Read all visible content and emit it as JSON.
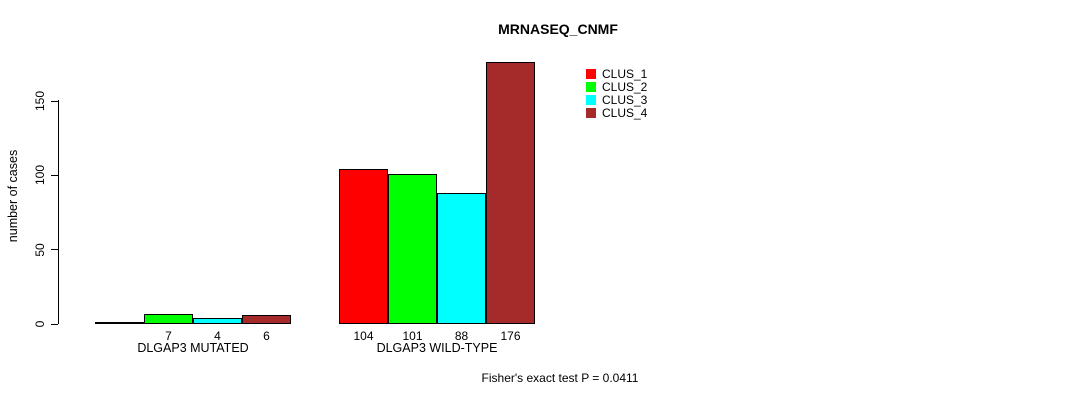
{
  "chart_data": {
    "type": "bar",
    "title": "MRNASEQ_CNMF",
    "ylabel": "number of cases",
    "xlabel": "",
    "ylim": [
      0,
      150
    ],
    "yticks": [
      0,
      50,
      100,
      150
    ],
    "grid": false,
    "legend_position": "top-right",
    "annotation": "Fisher's exact test P = 0.0411",
    "categories": [
      "DLGAP3 MUTATED",
      "DLGAP3 WILD-TYPE"
    ],
    "series": [
      {
        "name": "CLUS_1",
        "color": "#FF0000",
        "values": [
          0,
          104
        ]
      },
      {
        "name": "CLUS_2",
        "color": "#00FF00",
        "values": [
          7,
          101
        ]
      },
      {
        "name": "CLUS_3",
        "color": "#00FFFF",
        "values": [
          4,
          88
        ]
      },
      {
        "name": "CLUS_4",
        "color": "#A52A2A",
        "values": [
          6,
          176
        ]
      }
    ],
    "bar_value_labels": [
      [
        "",
        "7",
        "4",
        "6"
      ],
      [
        "104",
        "101",
        "88",
        "176"
      ]
    ],
    "axis_color": "#000000",
    "background": "#FFFFFF",
    "text_color": "#000000"
  }
}
